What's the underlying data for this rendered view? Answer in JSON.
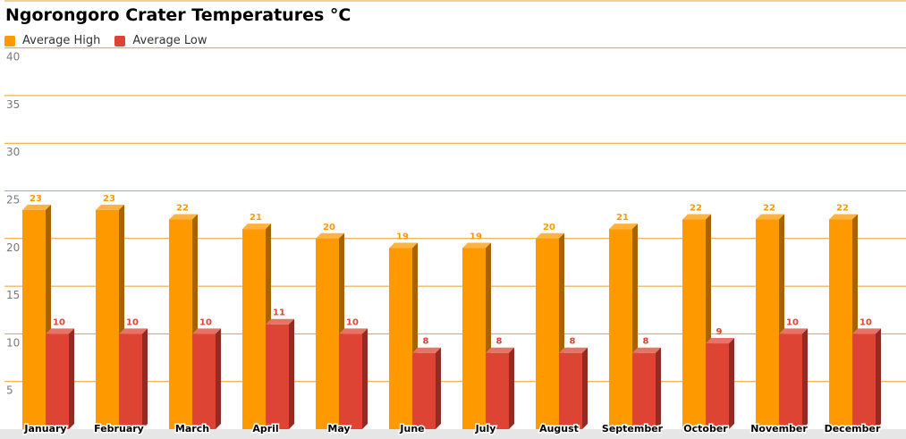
{
  "chart_data": {
    "type": "bar",
    "title": "Ngorongoro Crater Temperatures °C",
    "xlabel": "",
    "ylabel": "",
    "ylim": [
      0,
      40
    ],
    "yticks": [
      5,
      10,
      15,
      20,
      25,
      30,
      35,
      40
    ],
    "grid": true,
    "legend_position": "top-left",
    "categories": [
      "January",
      "February",
      "March",
      "April",
      "May",
      "June",
      "July",
      "August",
      "September",
      "October",
      "November",
      "December"
    ],
    "series": [
      {
        "name": "Average High",
        "color": "#ff9900",
        "values": [
          23,
          23,
          22,
          21,
          20,
          19,
          19,
          20,
          21,
          22,
          22,
          22
        ]
      },
      {
        "name": "Average Low",
        "color": "#dd4433",
        "values": [
          10,
          10,
          10,
          11,
          10,
          8,
          8,
          8,
          8,
          9,
          10,
          10
        ]
      }
    ]
  }
}
